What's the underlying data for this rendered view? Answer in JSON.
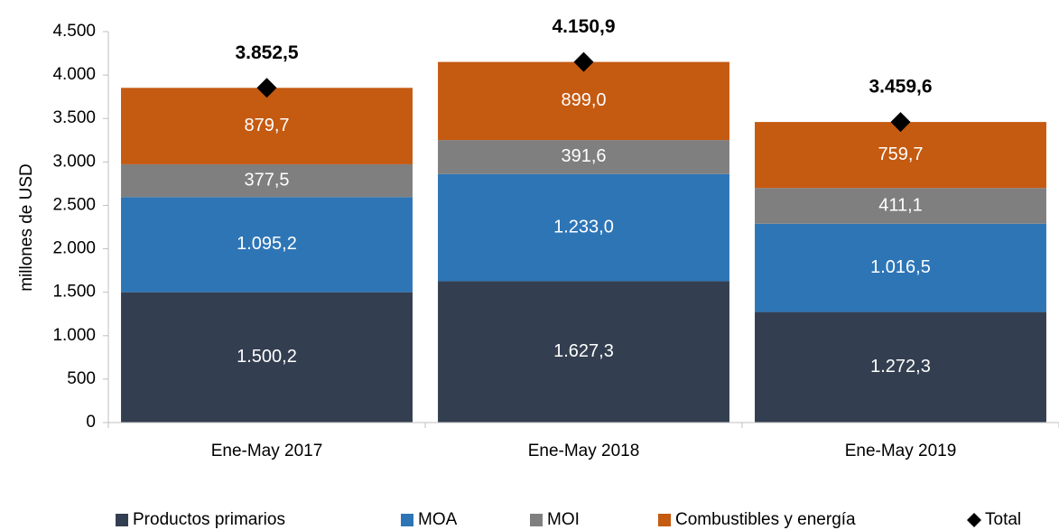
{
  "chart_data": {
    "type": "stacked_bar",
    "ylabel": "millones de  USD",
    "categories": [
      "Ene-May 2017",
      "Ene-May 2018",
      "Ene-May 2019"
    ],
    "series": [
      {
        "name": "Productos primarios",
        "color": "#333f50",
        "values": [
          1500.2,
          1627.3,
          1272.3
        ],
        "value_labels": [
          "1.500,2",
          "1.627,3",
          "1.272,3"
        ]
      },
      {
        "name": "MOA",
        "color": "#2e75b6",
        "values": [
          1095.2,
          1233.0,
          1016.5
        ],
        "value_labels": [
          "1.095,2",
          "1.233,0",
          "1.016,5"
        ]
      },
      {
        "name": "MOI",
        "color": "#7f7f7f",
        "values": [
          377.5,
          391.6,
          411.1
        ],
        "value_labels": [
          "377,5",
          "391,6",
          "411,1"
        ]
      },
      {
        "name": "Combustibles y energía",
        "color": "#c55a11",
        "values": [
          879.7,
          899.0,
          759.7
        ],
        "value_labels": [
          "879,7",
          "899,0",
          "759,7"
        ]
      },
      {
        "name": "Total",
        "type": "marker",
        "marker": "diamond",
        "color": "#000000",
        "values": [
          3852.5,
          4150.9,
          3459.6
        ],
        "value_labels": [
          "3.852,5",
          "4.150,9",
          "3.459,6"
        ]
      }
    ],
    "ylim": [
      0,
      4500
    ],
    "yticks": [
      0,
      500,
      {
        "value": 1000,
        "label": "1.000"
      },
      {
        "value": 1500,
        "label": "1.500"
      },
      {
        "value": 2000,
        "label": "2.000"
      },
      {
        "value": 2500,
        "label": "2.500"
      },
      {
        "value": 3000,
        "label": "3.000"
      },
      {
        "value": 3500,
        "label": "3.500"
      },
      {
        "value": 4000,
        "label": "4.000"
      },
      {
        "value": 4500,
        "label": "4.500"
      }
    ],
    "legend": "bottom"
  }
}
